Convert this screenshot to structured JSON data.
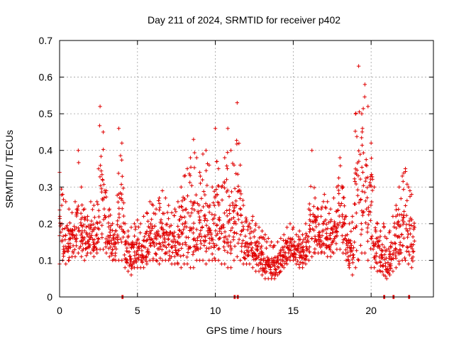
{
  "chart_data": {
    "type": "scatter",
    "title": "Day 211 of 2024, SRMTID for receiver p402",
    "xlabel": "GPS time / hours",
    "ylabel": "SRMTID / TECUs",
    "xlim": [
      0,
      24
    ],
    "ylim": [
      0,
      0.7
    ],
    "x_ticks": [
      0,
      5,
      10,
      15,
      20
    ],
    "x_tick_labels": [
      "0",
      "5",
      "10",
      "15",
      "20"
    ],
    "y_ticks": [
      0,
      0.1,
      0.2,
      0.3,
      0.4,
      0.5,
      0.6,
      0.7
    ],
    "y_tick_labels": [
      "0",
      "0.1",
      "0.2",
      "0.3",
      "0.4",
      "0.5",
      "0.6",
      "0.7"
    ],
    "grid": true,
    "marker": "plus",
    "series": [
      {
        "name": "SRMTID",
        "color": "#e00000",
        "envelope": [
          [
            0.0,
            0.09,
            0.34
          ],
          [
            0.2,
            0.1,
            0.28
          ],
          [
            0.4,
            0.09,
            0.26
          ],
          [
            0.6,
            0.1,
            0.24
          ],
          [
            0.8,
            0.11,
            0.23
          ],
          [
            1.0,
            0.11,
            0.26
          ],
          [
            1.2,
            0.12,
            0.4
          ],
          [
            1.4,
            0.11,
            0.3
          ],
          [
            1.6,
            0.1,
            0.24
          ],
          [
            1.8,
            0.12,
            0.22
          ],
          [
            2.0,
            0.12,
            0.26
          ],
          [
            2.2,
            0.11,
            0.25
          ],
          [
            2.4,
            0.12,
            0.26
          ],
          [
            2.6,
            0.13,
            0.52
          ],
          [
            2.8,
            0.13,
            0.45
          ],
          [
            3.0,
            0.12,
            0.29
          ],
          [
            3.2,
            0.11,
            0.24
          ],
          [
            3.4,
            0.1,
            0.2
          ],
          [
            3.6,
            0.1,
            0.18
          ],
          [
            3.8,
            0.1,
            0.46
          ],
          [
            4.0,
            0.1,
            0.42
          ],
          [
            4.2,
            0.08,
            0.2
          ],
          [
            4.4,
            0.07,
            0.18
          ],
          [
            4.6,
            0.06,
            0.19
          ],
          [
            4.8,
            0.08,
            0.2
          ],
          [
            5.0,
            0.08,
            0.21
          ],
          [
            5.2,
            0.08,
            0.2
          ],
          [
            5.4,
            0.08,
            0.22
          ],
          [
            5.6,
            0.09,
            0.23
          ],
          [
            5.8,
            0.1,
            0.26
          ],
          [
            6.0,
            0.1,
            0.25
          ],
          [
            6.2,
            0.1,
            0.24
          ],
          [
            6.4,
            0.09,
            0.27
          ],
          [
            6.6,
            0.1,
            0.29
          ],
          [
            6.8,
            0.1,
            0.27
          ],
          [
            7.0,
            0.1,
            0.25
          ],
          [
            7.2,
            0.09,
            0.23
          ],
          [
            7.4,
            0.09,
            0.24
          ],
          [
            7.6,
            0.09,
            0.26
          ],
          [
            7.8,
            0.08,
            0.3
          ],
          [
            8.0,
            0.09,
            0.33
          ],
          [
            8.2,
            0.09,
            0.35
          ],
          [
            8.4,
            0.08,
            0.38
          ],
          [
            8.6,
            0.08,
            0.43
          ],
          [
            8.8,
            0.1,
            0.38
          ],
          [
            9.0,
            0.1,
            0.34
          ],
          [
            9.2,
            0.1,
            0.39
          ],
          [
            9.4,
            0.09,
            0.4
          ],
          [
            9.6,
            0.1,
            0.36
          ],
          [
            9.8,
            0.1,
            0.3
          ],
          [
            10.0,
            0.1,
            0.46
          ],
          [
            10.2,
            0.1,
            0.35
          ],
          [
            10.4,
            0.09,
            0.3
          ],
          [
            10.6,
            0.09,
            0.38
          ],
          [
            10.8,
            0.08,
            0.46
          ],
          [
            11.0,
            0.08,
            0.4
          ],
          [
            11.2,
            0.1,
            0.36
          ],
          [
            11.4,
            0.11,
            0.53
          ],
          [
            11.6,
            0.1,
            0.36
          ],
          [
            11.8,
            0.09,
            0.25
          ],
          [
            12.0,
            0.09,
            0.21
          ],
          [
            12.2,
            0.09,
            0.2
          ],
          [
            12.4,
            0.08,
            0.22
          ],
          [
            12.6,
            0.07,
            0.2
          ],
          [
            12.8,
            0.07,
            0.19
          ],
          [
            13.0,
            0.06,
            0.18
          ],
          [
            13.2,
            0.05,
            0.17
          ],
          [
            13.4,
            0.05,
            0.16
          ],
          [
            13.6,
            0.05,
            0.15
          ],
          [
            13.8,
            0.05,
            0.14
          ],
          [
            14.0,
            0.06,
            0.15
          ],
          [
            14.2,
            0.07,
            0.16
          ],
          [
            14.4,
            0.08,
            0.17
          ],
          [
            14.6,
            0.09,
            0.19
          ],
          [
            14.8,
            0.1,
            0.2
          ],
          [
            15.0,
            0.1,
            0.19
          ],
          [
            15.2,
            0.09,
            0.17
          ],
          [
            15.4,
            0.08,
            0.18
          ],
          [
            15.6,
            0.08,
            0.17
          ],
          [
            15.8,
            0.09,
            0.2
          ],
          [
            16.0,
            0.1,
            0.24
          ],
          [
            16.2,
            0.11,
            0.4
          ],
          [
            16.4,
            0.12,
            0.27
          ],
          [
            16.6,
            0.12,
            0.24
          ],
          [
            16.8,
            0.12,
            0.24
          ],
          [
            17.0,
            0.12,
            0.28
          ],
          [
            17.2,
            0.11,
            0.26
          ],
          [
            17.4,
            0.11,
            0.24
          ],
          [
            17.6,
            0.12,
            0.27
          ],
          [
            17.8,
            0.13,
            0.3
          ],
          [
            18.0,
            0.13,
            0.38
          ],
          [
            18.2,
            0.12,
            0.3
          ],
          [
            18.4,
            0.1,
            0.22
          ],
          [
            18.6,
            0.08,
            0.2
          ],
          [
            18.8,
            0.06,
            0.22
          ],
          [
            19.0,
            0.08,
            0.5
          ],
          [
            19.2,
            0.1,
            0.63
          ],
          [
            19.4,
            0.12,
            0.5
          ],
          [
            19.6,
            0.12,
            0.58
          ],
          [
            19.8,
            0.1,
            0.52
          ],
          [
            20.0,
            0.08,
            0.42
          ],
          [
            20.2,
            0.08,
            0.3
          ],
          [
            20.4,
            0.07,
            0.2
          ],
          [
            20.6,
            0.07,
            0.18
          ],
          [
            20.8,
            0.06,
            0.2
          ],
          [
            21.0,
            0.05,
            0.16
          ],
          [
            21.2,
            0.06,
            0.18
          ],
          [
            21.4,
            0.07,
            0.22
          ],
          [
            21.6,
            0.08,
            0.25
          ],
          [
            21.8,
            0.09,
            0.3
          ],
          [
            22.0,
            0.1,
            0.33
          ],
          [
            22.2,
            0.1,
            0.35
          ],
          [
            22.4,
            0.09,
            0.3
          ],
          [
            22.6,
            0.08,
            0.28
          ],
          [
            22.8,
            0.09,
            0.3
          ]
        ],
        "zero_markers": [
          4.0,
          11.2,
          11.4,
          20.8,
          21.4,
          22.4
        ]
      }
    ]
  }
}
